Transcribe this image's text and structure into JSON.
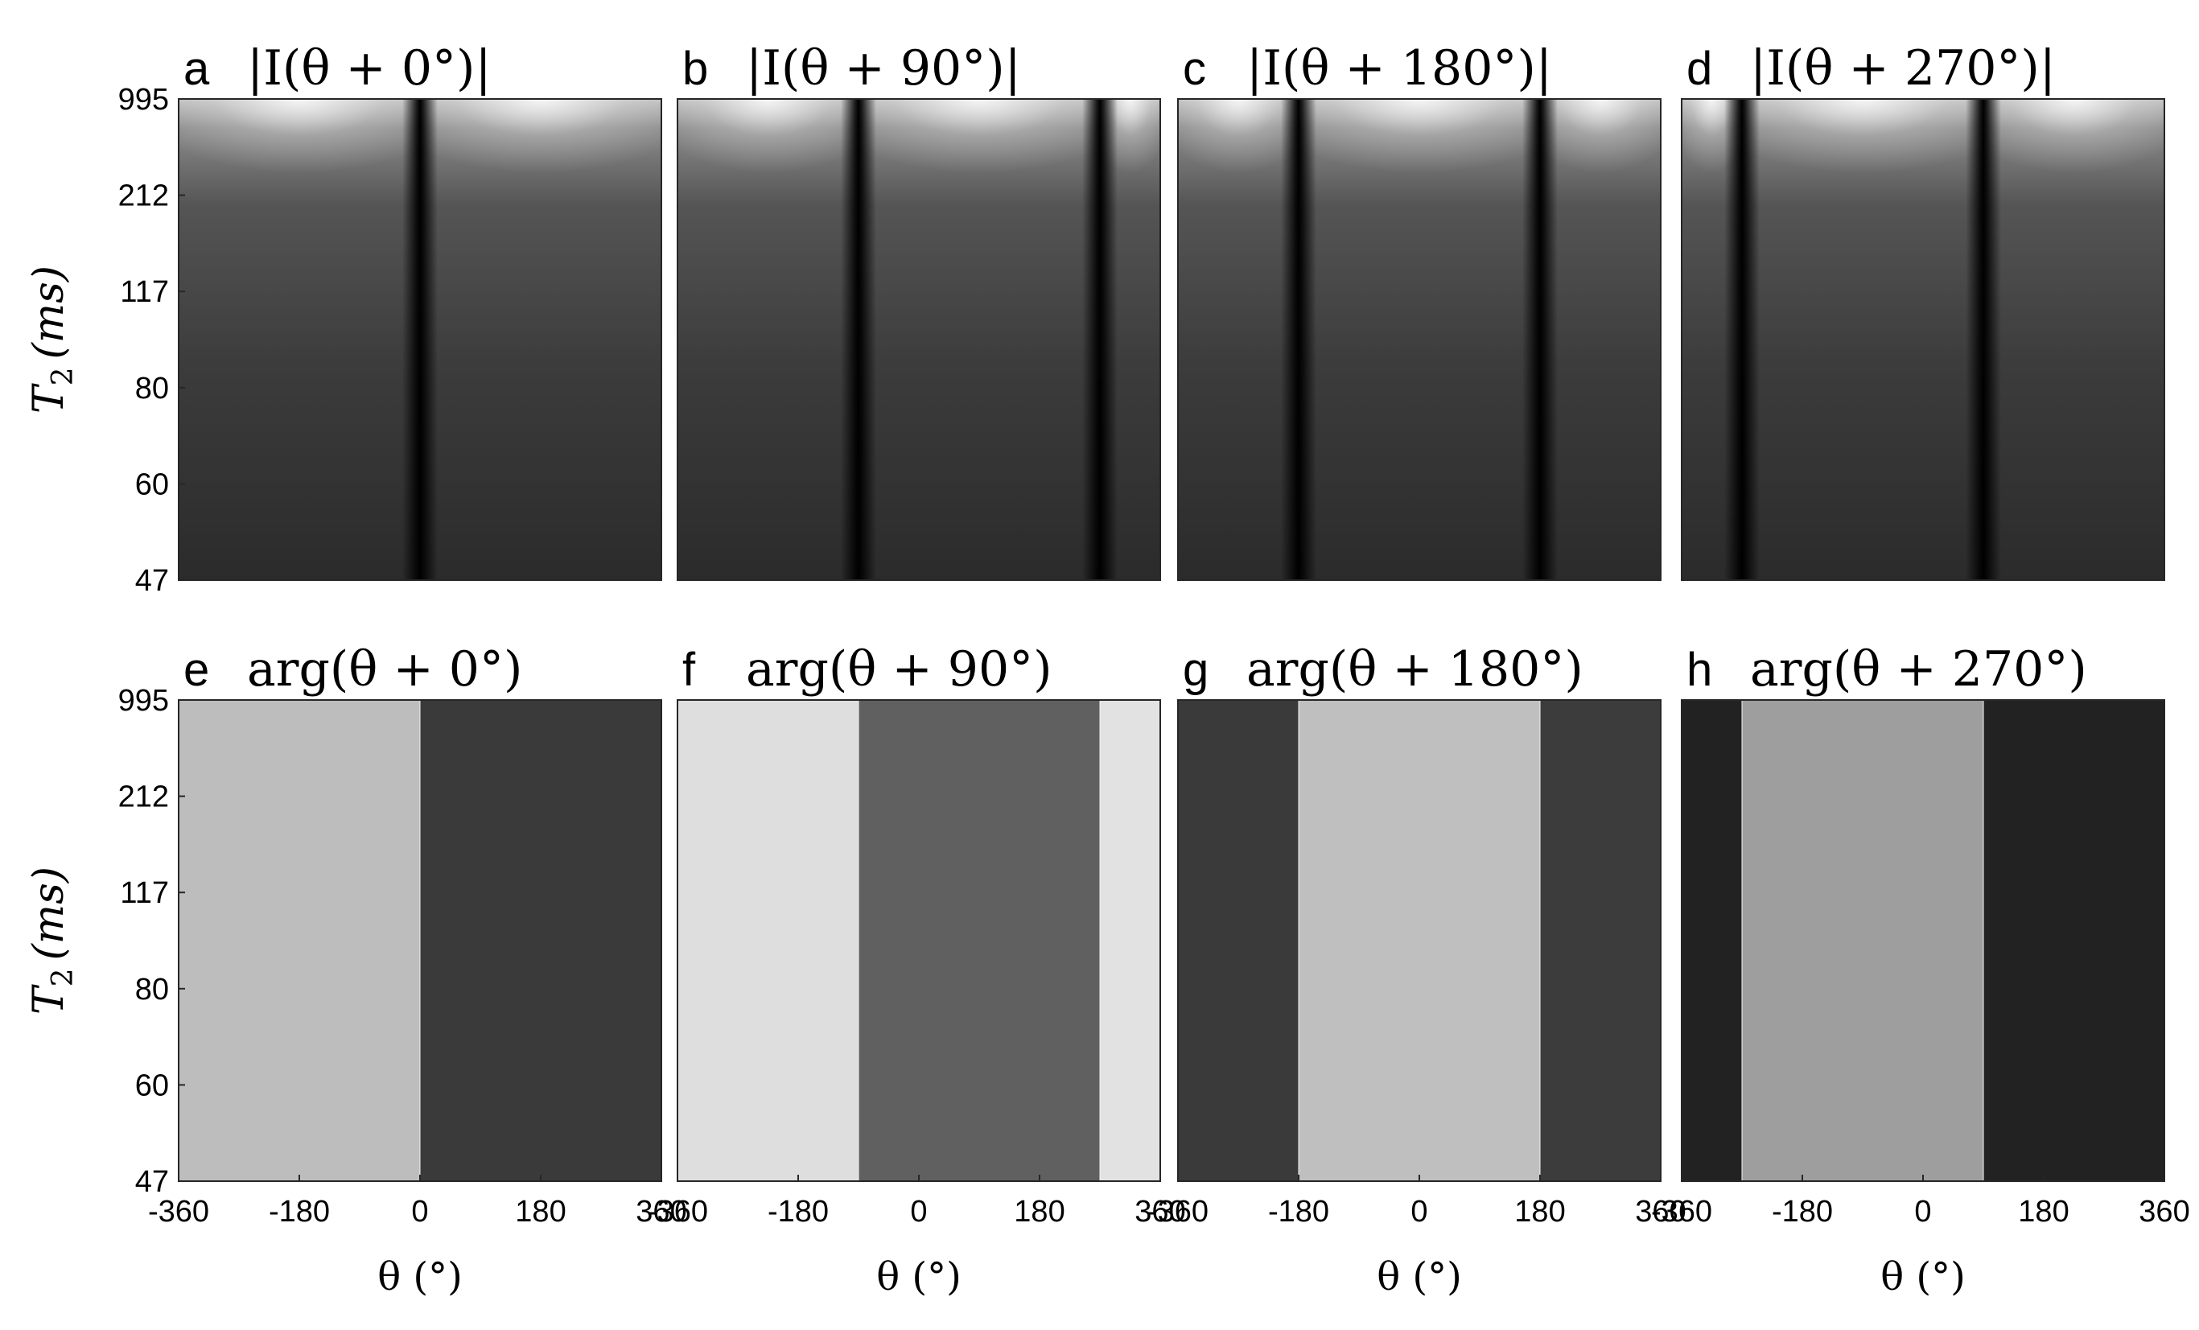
{
  "chart_data": {
    "type": "heatmap",
    "colormap": "gray",
    "grid": false,
    "y_ticks": [
      "995",
      "212",
      "117",
      "80",
      "60",
      "47"
    ],
    "x_ticks": [
      "-360",
      "-180",
      "0",
      "180",
      "360"
    ],
    "y_label_main": "T",
    "y_label_sub": "2",
    "y_label_unit": "(ms)",
    "x_label": "θ (°)",
    "xlim": [
      -360,
      360
    ],
    "ylim": [
      47,
      995
    ],
    "panels": [
      {
        "letter": "a",
        "title": "|I(θ + 0°)|",
        "kind": "magnitude",
        "offset": 0,
        "x_ticks_shown": false
      },
      {
        "letter": "b",
        "title": "|I(θ + 90°)|",
        "kind": "magnitude",
        "offset": 90,
        "x_ticks_shown": false
      },
      {
        "letter": "c",
        "title": "|I(θ + 180°)|",
        "kind": "magnitude",
        "offset": 180,
        "x_ticks_shown": false
      },
      {
        "letter": "d",
        "title": "|I(θ + 270°)|",
        "kind": "magnitude",
        "offset": 270,
        "x_ticks_shown": false
      },
      {
        "letter": "e",
        "title": "arg(θ + 0°)",
        "kind": "phase",
        "offset": 0,
        "x_ticks_shown": true
      },
      {
        "letter": "f",
        "title": "arg(θ + 90°)",
        "kind": "phase",
        "offset": 90,
        "x_ticks_shown": true
      },
      {
        "letter": "g",
        "title": "arg(θ + 180°)",
        "kind": "phase",
        "offset": 180,
        "x_ticks_shown": true
      },
      {
        "letter": "h",
        "title": "arg(θ + 270°)",
        "kind": "phase",
        "offset": 270,
        "x_ticks_shown": true
      }
    ],
    "magnitude_nulls_deg": [
      [
        0
      ],
      [
        -90,
        270
      ],
      [
        -180,
        180
      ],
      [
        -270,
        90
      ]
    ],
    "phase_bands": [
      [
        {
          "from": -360,
          "to": 0,
          "gray": "#bdbdbd"
        },
        {
          "from": 0,
          "to": 360,
          "gray": "#3a3a3a"
        }
      ],
      [
        {
          "from": -360,
          "to": -90,
          "gray": "#dedede"
        },
        {
          "from": -90,
          "to": 270,
          "gray": "#606060"
        },
        {
          "from": 270,
          "to": 360,
          "gray": "#e2e2e2"
        }
      ],
      [
        {
          "from": -360,
          "to": -180,
          "gray": "#3a3a3a"
        },
        {
          "from": -180,
          "to": 180,
          "gray": "#bfbfbf"
        },
        {
          "from": 180,
          "to": 360,
          "gray": "#3c3c3c"
        }
      ],
      [
        {
          "from": -360,
          "to": -270,
          "gray": "#222222"
        },
        {
          "from": -270,
          "to": 90,
          "gray": "#9e9e9e"
        },
        {
          "from": 90,
          "to": 360,
          "gray": "#222222"
        }
      ]
    ]
  }
}
